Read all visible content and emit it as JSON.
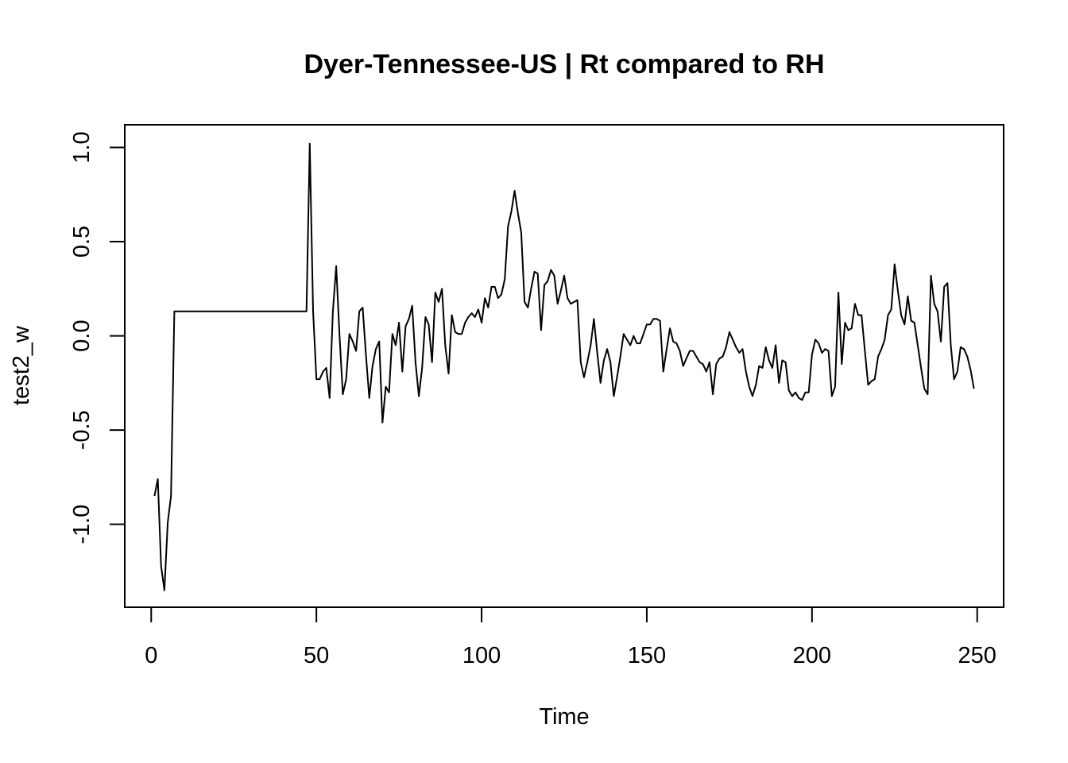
{
  "chart_data": {
    "type": "line",
    "title": "Dyer-Tennessee-US | Rt compared to RH",
    "xlabel": "Time",
    "ylabel": "test2_w",
    "xlim": [
      -8,
      258
    ],
    "ylim": [
      -1.44,
      1.12
    ],
    "x_ticks": [
      0,
      50,
      100,
      150,
      200,
      250
    ],
    "y_ticks": [
      -1.0,
      -0.5,
      0.0,
      0.5,
      1.0
    ],
    "x_tick_labels": [
      "0",
      "50",
      "100",
      "150",
      "200",
      "250"
    ],
    "y_tick_labels": [
      "-1.0",
      "-0.5",
      "0.0",
      "0.5",
      "1.0"
    ],
    "grid": false,
    "legend": "none",
    "line_color": "#000000",
    "series": [
      {
        "x_start": 1,
        "values": [
          -0.85,
          -0.76,
          -1.22,
          -1.35,
          -0.99,
          -0.85,
          0.13,
          0.13,
          0.13,
          0.13,
          0.13,
          0.13,
          0.13,
          0.13,
          0.13,
          0.13,
          0.13,
          0.13,
          0.13,
          0.13,
          0.13,
          0.13,
          0.13,
          0.13,
          0.13,
          0.13,
          0.13,
          0.13,
          0.13,
          0.13,
          0.13,
          0.13,
          0.13,
          0.13,
          0.13,
          0.13,
          0.13,
          0.13,
          0.13,
          0.13,
          0.13,
          0.13,
          0.13,
          0.13,
          0.13,
          0.13,
          0.13,
          1.02,
          0.13,
          -0.23,
          -0.23,
          -0.19,
          -0.17,
          -0.33,
          0.13,
          0.37,
          0.0,
          -0.31,
          -0.23,
          0.01,
          -0.03,
          -0.08,
          0.13,
          0.15,
          -0.1,
          -0.33,
          -0.16,
          -0.07,
          -0.03,
          -0.46,
          -0.27,
          -0.3,
          0.01,
          -0.05,
          0.07,
          -0.19,
          0.05,
          0.09,
          0.16,
          -0.14,
          -0.32,
          -0.17,
          0.1,
          0.06,
          -0.14,
          0.23,
          0.18,
          0.25,
          -0.05,
          -0.2,
          0.11,
          0.02,
          0.01,
          0.01,
          0.07,
          0.1,
          0.12,
          0.1,
          0.14,
          0.07,
          0.2,
          0.15,
          0.26,
          0.26,
          0.2,
          0.22,
          0.3,
          0.58,
          0.66,
          0.77,
          0.65,
          0.55,
          0.18,
          0.15,
          0.25,
          0.34,
          0.33,
          0.03,
          0.27,
          0.29,
          0.35,
          0.32,
          0.17,
          0.24,
          0.32,
          0.2,
          0.17,
          0.18,
          0.19,
          -0.14,
          -0.22,
          -0.14,
          -0.05,
          0.09,
          -0.09,
          -0.25,
          -0.13,
          -0.07,
          -0.14,
          -0.32,
          -0.22,
          -0.11,
          0.01,
          -0.02,
          -0.05,
          0.0,
          -0.04,
          -0.04,
          0.01,
          0.06,
          0.06,
          0.09,
          0.09,
          0.08,
          -0.19,
          -0.07,
          0.04,
          -0.03,
          -0.04,
          -0.08,
          -0.16,
          -0.12,
          -0.08,
          -0.08,
          -0.11,
          -0.14,
          -0.15,
          -0.19,
          -0.14,
          -0.31,
          -0.15,
          -0.12,
          -0.11,
          -0.06,
          0.02,
          -0.02,
          -0.06,
          -0.09,
          -0.07,
          -0.19,
          -0.27,
          -0.32,
          -0.26,
          -0.16,
          -0.17,
          -0.06,
          -0.13,
          -0.17,
          -0.05,
          -0.25,
          -0.13,
          -0.14,
          -0.29,
          -0.32,
          -0.3,
          -0.33,
          -0.34,
          -0.3,
          -0.3,
          -0.1,
          -0.02,
          -0.04,
          -0.09,
          -0.07,
          -0.08,
          -0.32,
          -0.27,
          0.23,
          -0.15,
          0.07,
          0.03,
          0.04,
          0.17,
          0.11,
          0.11,
          -0.08,
          -0.26,
          -0.24,
          -0.23,
          -0.11,
          -0.07,
          -0.02,
          0.11,
          0.14,
          0.38,
          0.24,
          0.11,
          0.06,
          0.21,
          0.08,
          0.07,
          -0.05,
          -0.17,
          -0.28,
          -0.31,
          0.32,
          0.17,
          0.13,
          -0.03,
          0.26,
          0.28,
          -0.05,
          -0.23,
          -0.19,
          -0.06,
          -0.07,
          -0.11,
          -0.18,
          -0.28
        ]
      }
    ]
  }
}
